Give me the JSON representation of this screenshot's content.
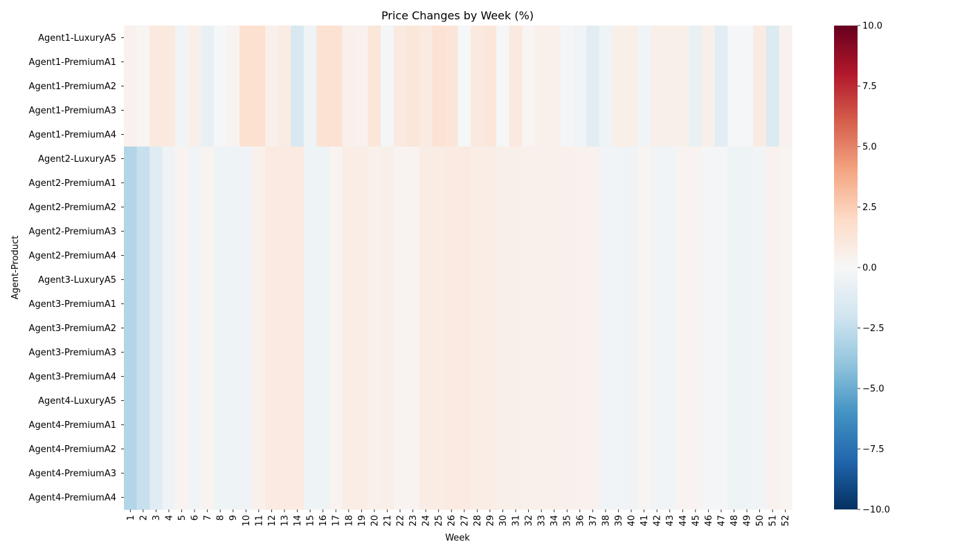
{
  "chart_data": {
    "type": "heatmap",
    "title": "Price Changes by Week (%)",
    "xlabel": "Week",
    "ylabel": "Agent-Product",
    "weeks": [
      1,
      2,
      3,
      4,
      5,
      6,
      7,
      8,
      9,
      10,
      11,
      12,
      13,
      14,
      15,
      16,
      17,
      18,
      19,
      20,
      21,
      22,
      23,
      24,
      25,
      26,
      27,
      28,
      29,
      30,
      31,
      32,
      33,
      34,
      35,
      36,
      37,
      38,
      39,
      40,
      41,
      42,
      43,
      44,
      45,
      46,
      47,
      48,
      49,
      50,
      51,
      52
    ],
    "rows": [
      "Agent1-LuxuryA5",
      "Agent1-PremiumA1",
      "Agent1-PremiumA2",
      "Agent1-PremiumA3",
      "Agent1-PremiumA4",
      "Agent2-LuxuryA5",
      "Agent2-PremiumA1",
      "Agent2-PremiumA2",
      "Agent2-PremiumA3",
      "Agent2-PremiumA4",
      "Agent3-LuxuryA5",
      "Agent3-PremiumA1",
      "Agent3-PremiumA2",
      "Agent3-PremiumA3",
      "Agent3-PremiumA4",
      "Agent4-LuxuryA5",
      "Agent4-PremiumA1",
      "Agent4-PremiumA2",
      "Agent4-PremiumA3",
      "Agent4-PremiumA4"
    ],
    "row_groups": [
      {
        "rows": [
          0,
          1,
          2,
          3,
          4
        ],
        "values": [
          0.4,
          0.2,
          1.0,
          1.0,
          -0.3,
          0.6,
          -0.8,
          -0.1,
          0.3,
          1.6,
          1.6,
          0.5,
          0.8,
          -1.7,
          -0.5,
          1.5,
          1.5,
          0.5,
          0.4,
          1.2,
          -0.2,
          1.0,
          1.2,
          0.9,
          1.5,
          1.3,
          -0.1,
          1.0,
          1.2,
          -0.1,
          1.0,
          0.2,
          0.5,
          0.5,
          -0.2,
          -0.3,
          -1.1,
          -0.5,
          0.6,
          0.6,
          -0.3,
          0.6,
          0.6,
          0.6,
          -0.8,
          0.6,
          -1.1,
          -0.1,
          -0.1,
          0.9,
          -1.4,
          0.4
        ]
      },
      {
        "rows": [
          5,
          6,
          7,
          8,
          9,
          10,
          11,
          12,
          13,
          14,
          15,
          16,
          17,
          18,
          19
        ],
        "values": [
          -3.0,
          -2.3,
          -1.2,
          -0.4,
          0.3,
          -0.3,
          0.3,
          -0.5,
          -0.5,
          -0.4,
          0.5,
          0.9,
          0.9,
          0.9,
          -0.5,
          -0.5,
          0.3,
          0.7,
          0.7,
          0.5,
          0.6,
          0.3,
          0.3,
          0.8,
          0.8,
          0.9,
          0.9,
          0.7,
          0.7,
          0.6,
          0.6,
          0.5,
          0.5,
          0.5,
          0.5,
          0.4,
          0.4,
          -0.3,
          -0.3,
          -0.4,
          0.2,
          -0.3,
          -0.3,
          0.3,
          0.3,
          -0.2,
          -0.2,
          -0.5,
          -0.5,
          -0.3,
          0.4,
          0.2
        ]
      }
    ],
    "colorbar": {
      "min": -10,
      "max": 10,
      "ticks": [
        "10.0",
        "7.5",
        "5.0",
        "2.5",
        "0.0",
        "−2.5",
        "−5.0",
        "−7.5",
        "−10.0"
      ],
      "tick_values": [
        10,
        7.5,
        5,
        2.5,
        0,
        -2.5,
        -5,
        -7.5,
        -10
      ]
    },
    "colormap": [
      "#053061",
      "#2166ac",
      "#4393c3",
      "#92c5de",
      "#d1e5f0",
      "#f7f7f7",
      "#fddbc7",
      "#f4a582",
      "#d6604d",
      "#b2182b",
      "#67001f"
    ]
  }
}
